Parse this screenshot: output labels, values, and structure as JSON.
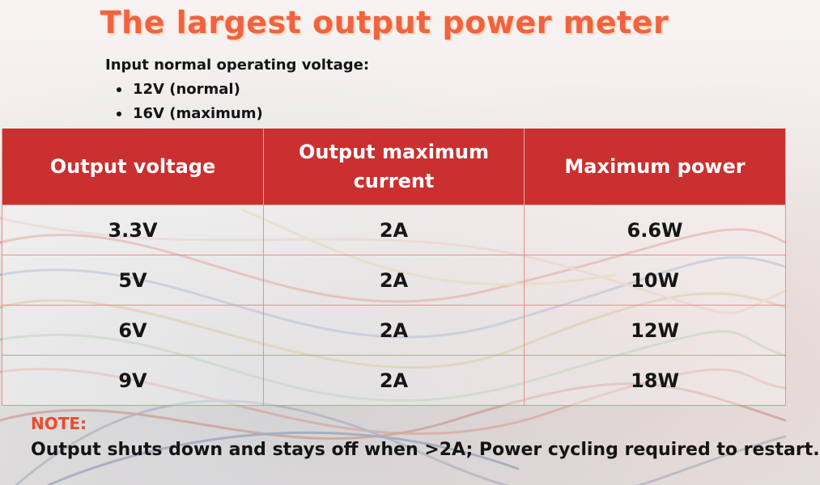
{
  "colors": {
    "title": "#f0633f",
    "title_shadow": "#ffd9c4",
    "header_bg": "#c9302f",
    "note_label": "#ec4a32"
  },
  "title": "The largest output power meter",
  "intro": {
    "heading": "Input normal operating voltage:",
    "items": [
      "12V (normal)",
      "16V (maximum)"
    ]
  },
  "table": {
    "headers": [
      "Output voltage",
      "Output maximum current",
      "Maximum power"
    ],
    "rows": [
      [
        "3.3V",
        "2A",
        "6.6W"
      ],
      [
        "5V",
        "2A",
        "10W"
      ],
      [
        "6V",
        "2A",
        "12W"
      ],
      [
        "9V",
        "2A",
        "18W"
      ]
    ]
  },
  "note": {
    "label": "NOTE:",
    "text": "Output shuts down and stays off when >2A; Power cycling required to restart."
  }
}
